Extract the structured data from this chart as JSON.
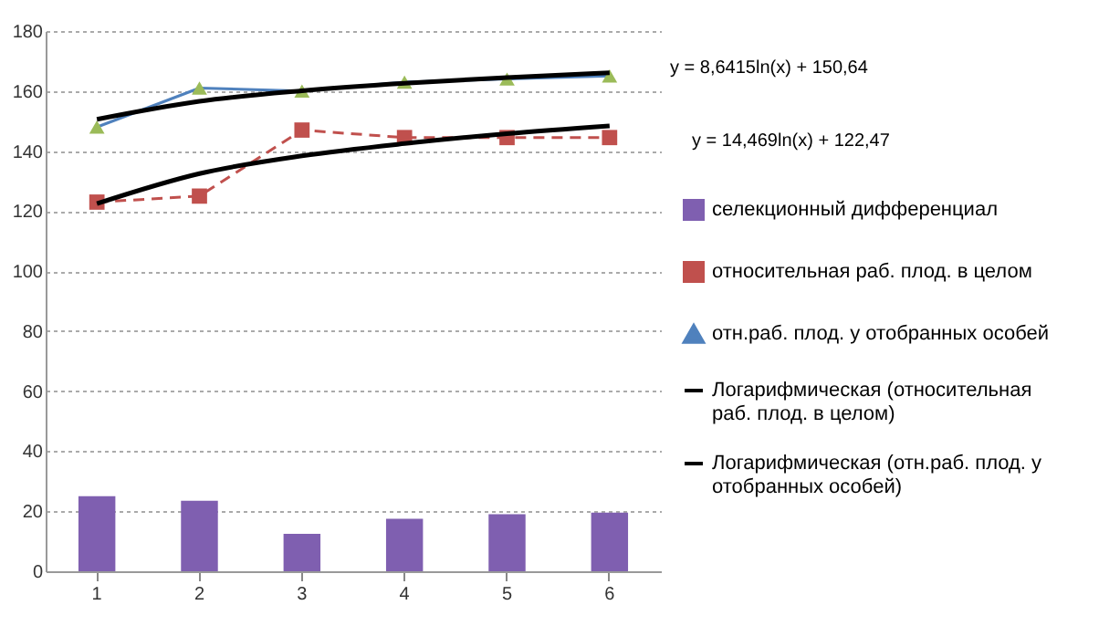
{
  "chart_data": {
    "type": "bar",
    "categories": [
      "1",
      "2",
      "3",
      "4",
      "5",
      "6"
    ],
    "series": [
      {
        "name": "селекционный дифференциал",
        "color": "#7f5fb0",
        "values": [
          25,
          23.5,
          12.5,
          17.5,
          19,
          19.5
        ]
      },
      {
        "name": "относительная раб. плод. в целом",
        "type": "line",
        "color": "#c0504d",
        "marker": "square",
        "line_style": "dashed",
        "values": [
          123,
          125,
          147,
          144.5,
          144.5,
          144.5
        ]
      },
      {
        "name": "отн.раб. плод. у отобранных особей",
        "type": "line",
        "color": "#4f81bd",
        "marker": "triangle",
        "line_style": "solid",
        "values": [
          148,
          161,
          160,
          163,
          164,
          165
        ]
      },
      {
        "name": "Логарифмическая (относительная раб. плод. в целом)",
        "type": "line",
        "color": "#000000",
        "line_style": "solid",
        "values": [
          122.5,
          132.5,
          138.4,
          142.5,
          145.8,
          148.4
        ]
      },
      {
        "name": "Логарифмическая (отн.раб. плод. у отобранных особей)",
        "type": "line",
        "color": "#000000",
        "line_style": "solid",
        "values": [
          150.6,
          156.6,
          160.1,
          162.6,
          164.5,
          166.1
        ]
      }
    ],
    "annotations": [
      "y = 8,6415ln(x) + 150,64",
      "y = 14,469ln(x) + 122,47"
    ],
    "ylim": [
      0,
      180
    ],
    "yticks": [
      0,
      20,
      40,
      60,
      80,
      100,
      120,
      140,
      160,
      180
    ],
    "grid": "y",
    "legend": "right"
  }
}
